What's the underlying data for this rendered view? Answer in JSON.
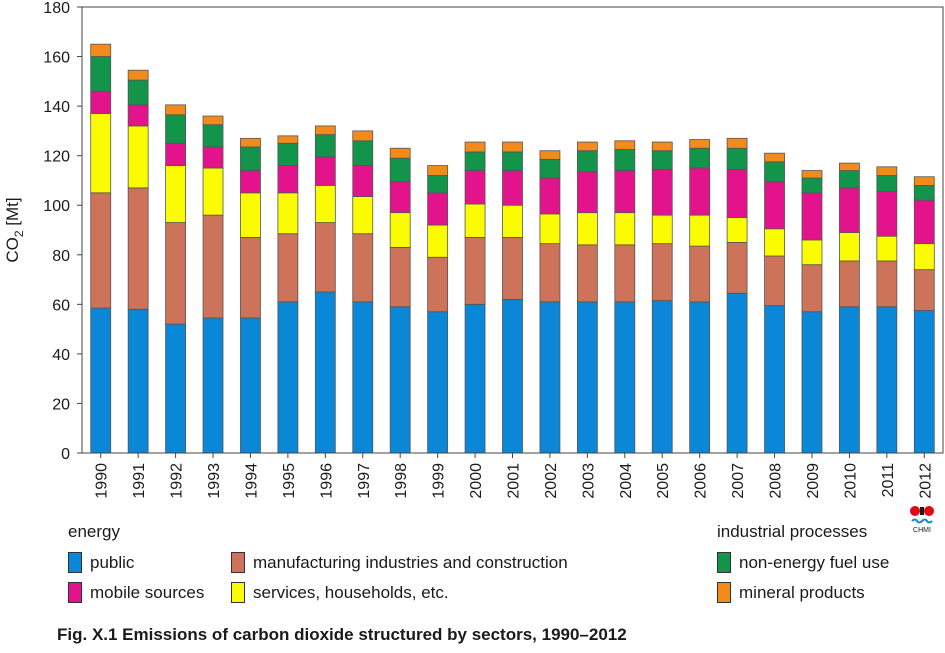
{
  "chart_data": {
    "type": "bar",
    "stacked": true,
    "title": "",
    "xlabel": "",
    "ylabel": "CO2 [Mt]",
    "ylabel_main": "CO",
    "ylabel_sub": "2",
    "ylabel_unit": " [Mt]",
    "ylim": [
      0,
      180
    ],
    "yticks": [
      "0",
      "20",
      "40",
      "60",
      "80",
      "100",
      "120",
      "140",
      "160",
      "180"
    ],
    "grid": false,
    "legend_placement": "bottom",
    "categories": [
      "1990",
      "1991",
      "1992",
      "1993",
      "1994",
      "1995",
      "1996",
      "1997",
      "1998",
      "1999",
      "2000",
      "2001",
      "2002",
      "2003",
      "2004",
      "2005",
      "2006",
      "2007",
      "2008",
      "2009",
      "2010",
      "2011",
      "2012"
    ],
    "series": [
      {
        "name": "public",
        "color": "#0a87d6",
        "values": [
          58.5,
          58,
          52,
          54.5,
          54.5,
          61,
          65,
          61,
          59,
          57,
          60,
          62,
          61,
          61,
          61,
          61.5,
          61,
          64.5,
          59.5,
          57,
          59,
          59,
          57.5
        ]
      },
      {
        "name": "manufacturing industries and construction",
        "color": "#cc7359",
        "values": [
          46.5,
          49,
          41,
          41.5,
          32.5,
          27.5,
          28,
          27.5,
          24,
          22,
          27,
          25,
          23.5,
          23,
          23,
          23,
          22.5,
          20.5,
          20,
          19,
          18.5,
          18.5,
          16.5
        ]
      },
      {
        "name": "services, households, etc.",
        "color": "#fcfc00",
        "values": [
          32,
          25,
          23,
          19,
          18,
          16.5,
          15,
          15,
          14,
          13,
          13.5,
          13,
          12,
          13,
          13,
          11.5,
          12.5,
          10,
          11,
          10,
          11.5,
          10,
          10.5
        ]
      },
      {
        "name": "mobile sources",
        "color": "#e3138c",
        "values": [
          9,
          8.5,
          9,
          8.5,
          9,
          11,
          11.5,
          12.5,
          12.5,
          13,
          13.5,
          14,
          14.5,
          16.5,
          17,
          18.5,
          19,
          19.5,
          19,
          19,
          18,
          18,
          17.5
        ]
      },
      {
        "name": "non-energy fuel use",
        "color": "#12944a",
        "values": [
          14,
          10,
          11.5,
          9,
          9.5,
          9,
          9,
          10,
          9.5,
          7,
          7.5,
          7.5,
          7.5,
          8.5,
          8.5,
          7.5,
          8,
          8.5,
          8,
          6,
          7,
          6.5,
          6
        ]
      },
      {
        "name": "mineral products",
        "color": "#f28b1c",
        "values": [
          5,
          4,
          4,
          3.5,
          3.5,
          3,
          3.5,
          4,
          4,
          4,
          4,
          4,
          3.5,
          3.5,
          3.5,
          3.5,
          3.5,
          4,
          3.5,
          3,
          3,
          3.5,
          3.5
        ]
      }
    ]
  },
  "legend": {
    "energy_title": "energy",
    "industrial_title": "industrial processes",
    "public": "public",
    "manufacturing": "manufacturing industries and construction",
    "mobile": "mobile sources",
    "services": "services, households, etc.",
    "non_energy": "non-energy fuel use",
    "mineral": "mineral products"
  },
  "colors": {
    "public": "#0a87d6",
    "manufacturing": "#cc7359",
    "mobile": "#e3138c",
    "services": "#fcfc00",
    "non_energy": "#12944a",
    "mineral": "#f28b1c"
  },
  "caption": "Fig. X.1  Emissions of carbon dioxide structured by sectors, 1990–2012",
  "logo_text": "CHMI"
}
